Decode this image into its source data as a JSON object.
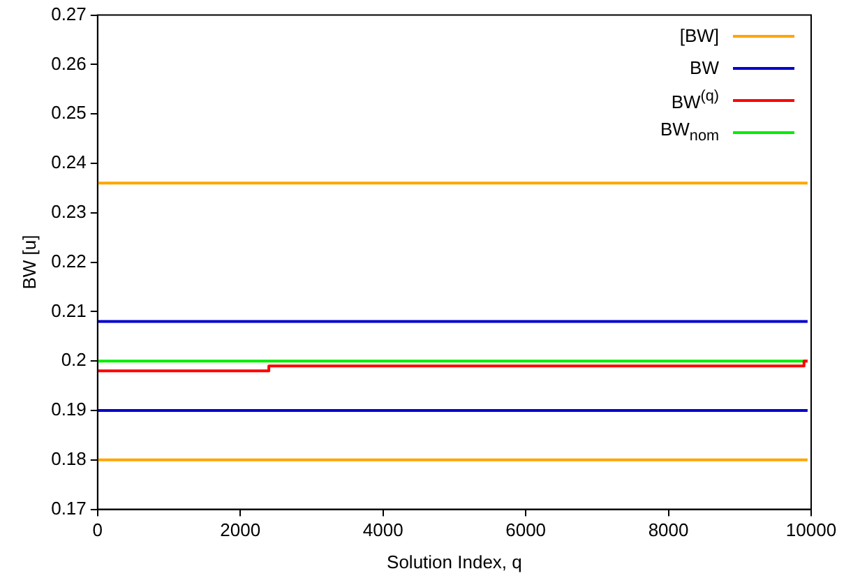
{
  "chart_data": {
    "type": "line",
    "xlabel": "Solution Index, q",
    "ylabel": "BW [u]",
    "xlim": [
      0,
      10000
    ],
    "xticks": [
      0,
      2000,
      4000,
      6000,
      8000,
      10000
    ],
    "ylim": [
      0.17,
      0.27
    ],
    "yticks": [
      0.17,
      0.18,
      0.19,
      0.2,
      0.21,
      0.22,
      0.23,
      0.24,
      0.25,
      0.26,
      0.27
    ],
    "grid": false,
    "legend": "top right",
    "marker": "none",
    "line_style": "solid",
    "series": [
      {
        "name": "[BW]",
        "color": "#ffa500",
        "x": [
          0,
          9950
        ],
        "values": [
          0.236,
          0.236
        ]
      },
      {
        "color": "#ffa500",
        "x": [
          0,
          9950
        ],
        "values": [
          0.18,
          0.18
        ]
      },
      {
        "name": "BW",
        "color": "#0000cc",
        "x": [
          0,
          9950
        ],
        "values": [
          0.208,
          0.208
        ]
      },
      {
        "color": "#0000cc",
        "x": [
          0,
          9950
        ],
        "values": [
          0.19,
          0.19
        ]
      },
      {
        "name": "BW$^{(q)}$",
        "type": "step",
        "color": "#ff0000",
        "x": [
          0,
          2400,
          9900,
          9950
        ],
        "values": [
          0.198,
          0.199,
          0.2,
          0.2
        ]
      },
      {
        "name": "BW$_{nom}$",
        "color": "#00ee00",
        "x": [
          0,
          9950
        ],
        "values": [
          0.2,
          0.2
        ]
      }
    ]
  }
}
